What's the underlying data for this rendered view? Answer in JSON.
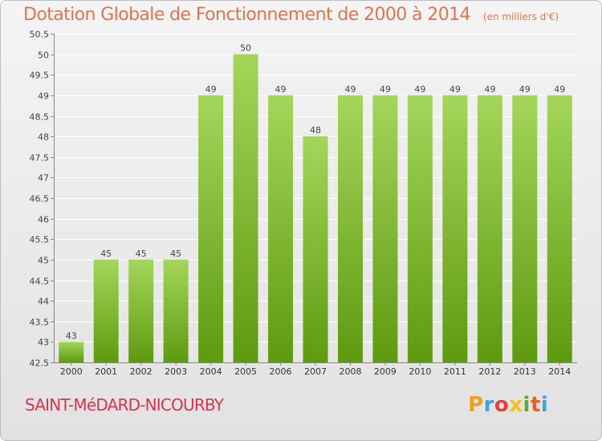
{
  "header": {
    "title": "Dotation Globale de Fonctionnement de 2000 à 2014",
    "unit": "(en milliers d'€)"
  },
  "footer": {
    "commune": "SAINT-MéDARD-NICOURBY",
    "brand_letters": [
      "P",
      "r",
      "o",
      "x",
      "i",
      "t",
      "i"
    ],
    "brand_colors": [
      "#f0a020",
      "#4aa0d8",
      "#e04040",
      "#f0c020",
      "#58b030",
      "#e86020",
      "#4aa0d8"
    ]
  },
  "colors": {
    "bar_top": "#a4d65a",
    "bar_bottom": "#5e9a10",
    "title": "#e0734d",
    "commune": "#d9334f"
  },
  "chart_data": {
    "type": "bar",
    "categories": [
      "2000",
      "2001",
      "2002",
      "2003",
      "2004",
      "2005",
      "2006",
      "2007",
      "2008",
      "2009",
      "2010",
      "2011",
      "2012",
      "2013",
      "2014"
    ],
    "values": [
      43,
      45,
      45,
      45,
      49,
      50,
      49,
      48,
      49,
      49,
      49,
      49,
      49,
      49,
      49
    ],
    "data_labels": [
      "43",
      "45",
      "45",
      "45",
      "49",
      "50",
      "49",
      "48",
      "49",
      "49",
      "49",
      "49",
      "49",
      "49",
      "49"
    ],
    "yticks": [
      42.5,
      43,
      43.5,
      44,
      44.5,
      45,
      45.5,
      46,
      46.5,
      47,
      47.5,
      48,
      48.5,
      49,
      49.5,
      50,
      50.5
    ],
    "ytick_labels": [
      "42.5",
      "43",
      "43.5",
      "44",
      "44.5",
      "45",
      "45.5",
      "46",
      "46.5",
      "47",
      "47.5",
      "48",
      "48.5",
      "49",
      "49.5",
      "50",
      "50.5"
    ],
    "ylim": [
      42.5,
      50.5
    ],
    "grid": true,
    "title": "Dotation Globale de Fonctionnement de 2000 à 2014",
    "xlabel": "",
    "ylabel": ""
  }
}
